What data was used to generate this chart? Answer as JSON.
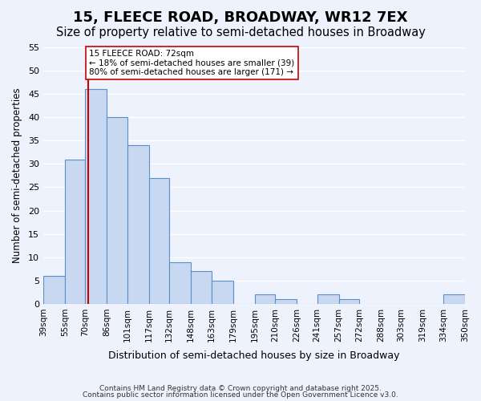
{
  "title": "15, FLEECE ROAD, BROADWAY, WR12 7EX",
  "subtitle": "Size of property relative to semi-detached houses in Broadway",
  "xlabel": "Distribution of semi-detached houses by size in Broadway",
  "ylabel": "Number of semi-detached properties",
  "bin_edges": [
    39,
    55,
    70,
    86,
    101,
    117,
    132,
    148,
    163,
    179,
    195,
    210,
    226,
    241,
    257,
    272,
    288,
    303,
    319,
    334,
    350
  ],
  "bar_heights": [
    6,
    31,
    46,
    40,
    34,
    27,
    9,
    7,
    5,
    0,
    2,
    1,
    0,
    2,
    1,
    0,
    0,
    0,
    0,
    2
  ],
  "bar_color": "#c8d8f0",
  "bar_edge_color": "#5a8fc8",
  "property_size": 72,
  "property_line_color": "#cc0000",
  "annotation_line1": "15 FLEECE ROAD: 72sqm",
  "annotation_line2": "← 18% of semi-detached houses are smaller (39)",
  "annotation_line3": "80% of semi-detached houses are larger (171) →",
  "annotation_box_color": "#ffffff",
  "annotation_box_edge_color": "#cc0000",
  "ylim": [
    0,
    55
  ],
  "yticks": [
    0,
    5,
    10,
    15,
    20,
    25,
    30,
    35,
    40,
    45,
    50,
    55
  ],
  "background_color": "#eef2fc",
  "footer1": "Contains HM Land Registry data © Crown copyright and database right 2025.",
  "footer2": "Contains public sector information licensed under the Open Government Licence v3.0.",
  "title_fontsize": 13,
  "subtitle_fontsize": 10.5
}
